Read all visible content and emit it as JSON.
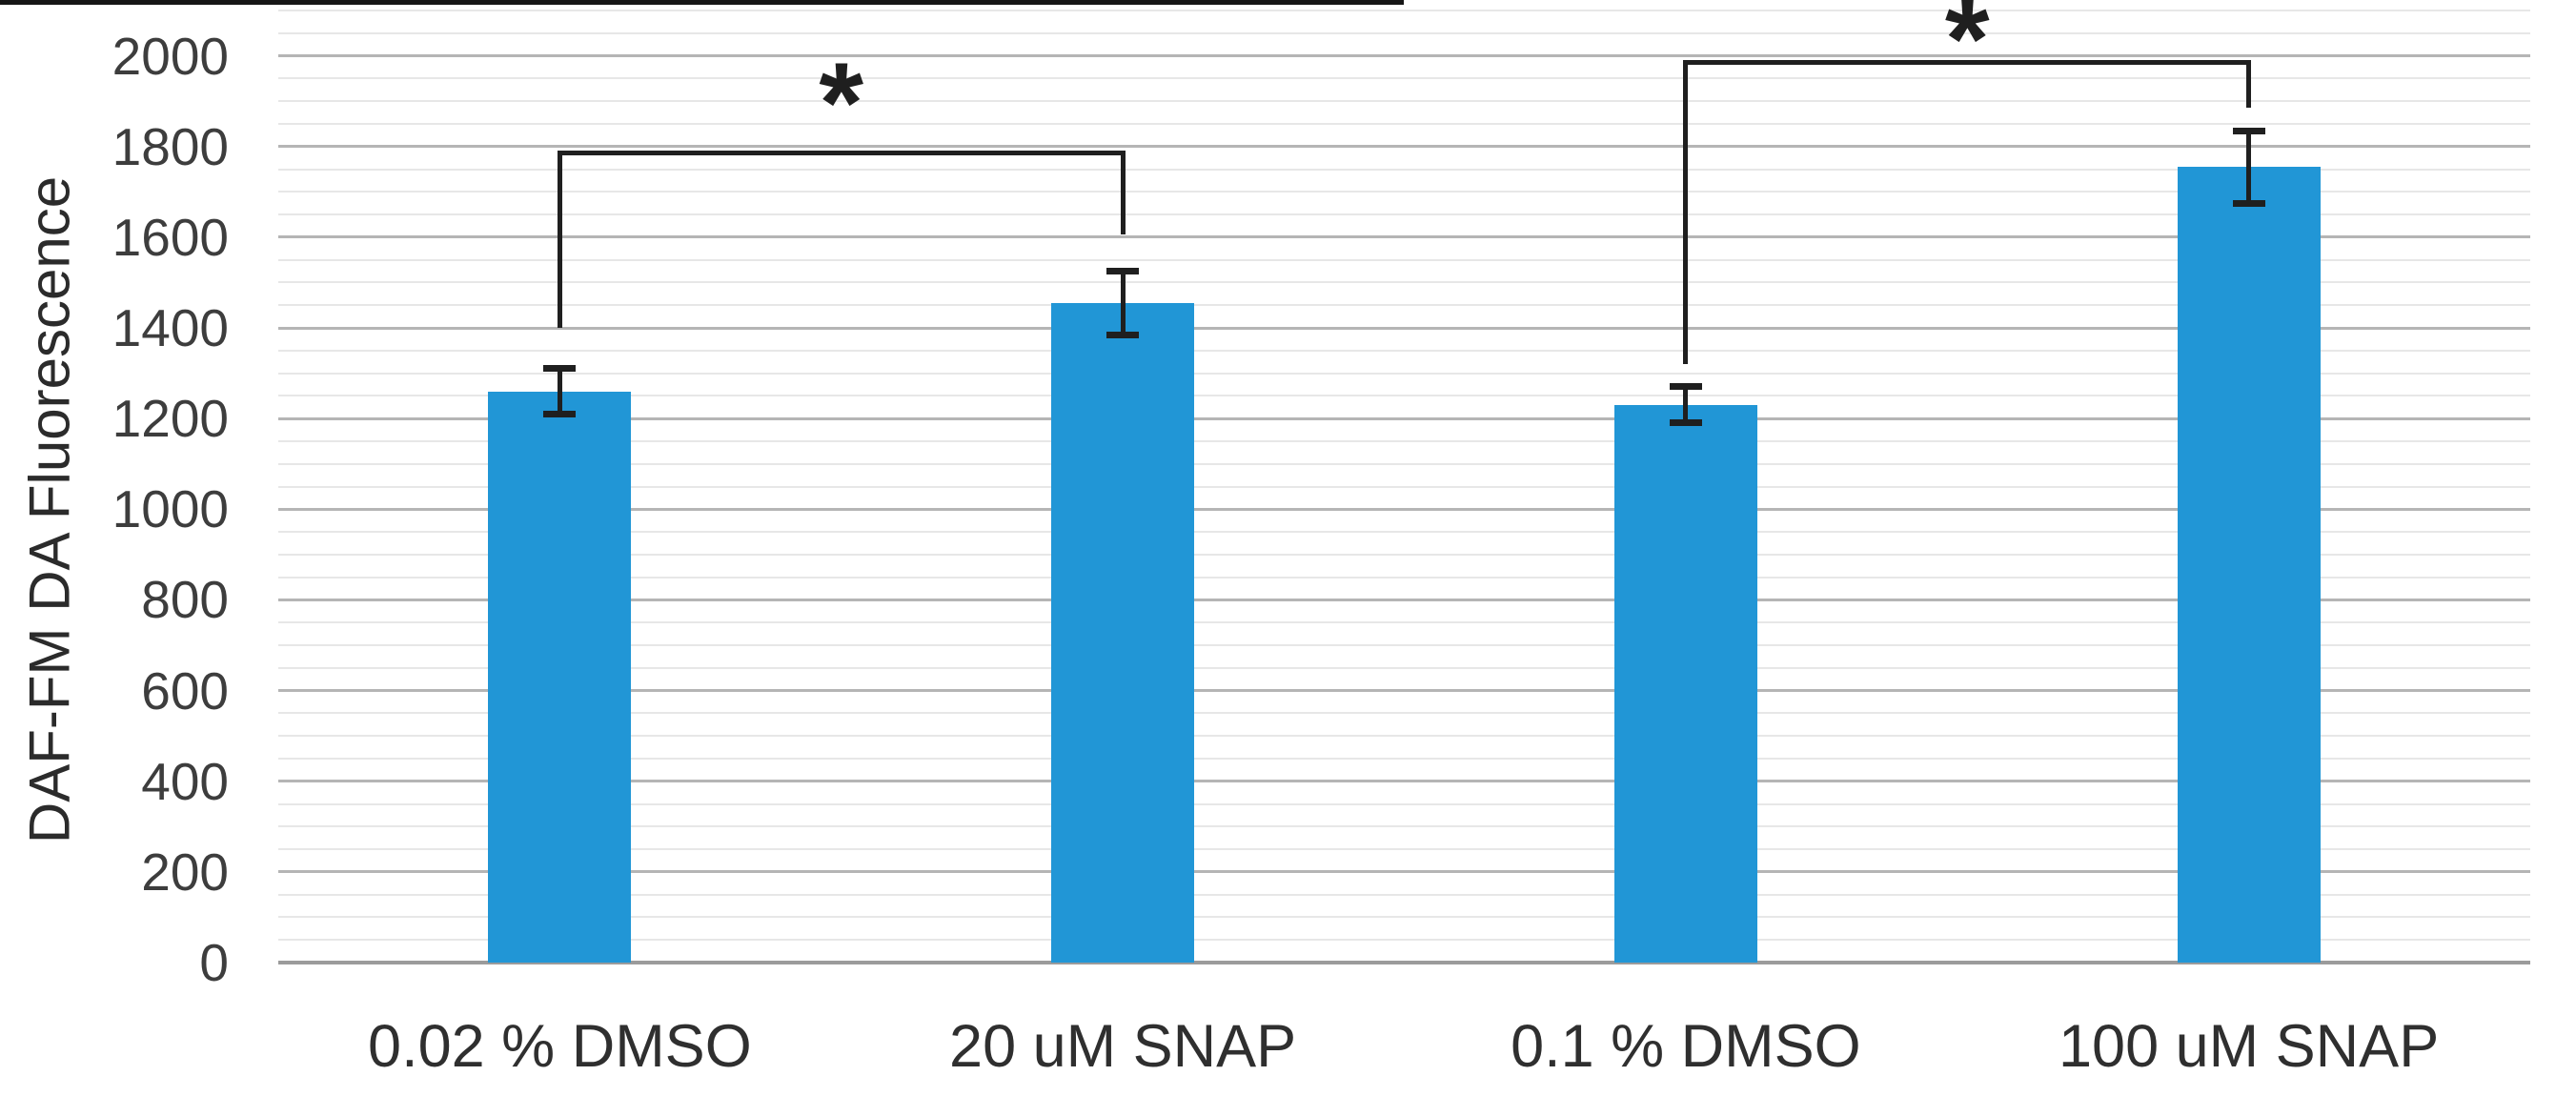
{
  "figure": {
    "kind": "scientific bar chart figure",
    "background": "#ffffff"
  },
  "chart_data": {
    "type": "bar",
    "title": "",
    "xlabel": "",
    "ylabel": "DAF-FM DA Fluorescence",
    "categories": [
      "0.02 % DMSO",
      "20 uM SNAP",
      "0.1 % DMSO",
      "100 uM SNAP"
    ],
    "values": [
      1260,
      1455,
      1230,
      1755
    ],
    "error_bars": [
      50,
      70,
      40,
      80
    ],
    "ylim": [
      0,
      2000
    ],
    "y_ticks": [
      2000,
      1800,
      1600,
      1400,
      1200,
      1000,
      800,
      600,
      400,
      200,
      0
    ],
    "y_major_step": 200,
    "y_minor_step": 50,
    "grid": "horizontal major and minor gridlines, no vertical gridlines",
    "legend": "none",
    "bar_color": "#2196d6",
    "significance_brackets": [
      {
        "groups": [
          "0.02 % DMSO",
          "20 uM SNAP"
        ],
        "from_index": 0,
        "to_index": 1,
        "label": "*",
        "bracket_y": 1790,
        "left_leg_bottom": 1400,
        "right_leg_bottom": 1605,
        "label_y": 1930
      },
      {
        "groups": [
          "0.1 % DMSO",
          "100 uM SNAP"
        ],
        "from_index": 2,
        "to_index": 3,
        "label": "*",
        "bracket_y": 1990,
        "left_leg_bottom": 1320,
        "right_leg_bottom": 1885,
        "label_y": 2070
      }
    ]
  },
  "colors": {
    "background": "#ffffff",
    "bar": "#2196d6",
    "major_gridline": "#b5b5b5",
    "minor_gridline": "#e7e7e7",
    "axis_line": "#9b9b9b",
    "error_bar": "#1f1f1f",
    "bracket": "#1f1f1f",
    "tick_label_text": "#3d3d3d",
    "category_label_text": "#2f2f2f",
    "axis_title_text": "#2b2b2b",
    "crop_artifact": "#161616"
  }
}
